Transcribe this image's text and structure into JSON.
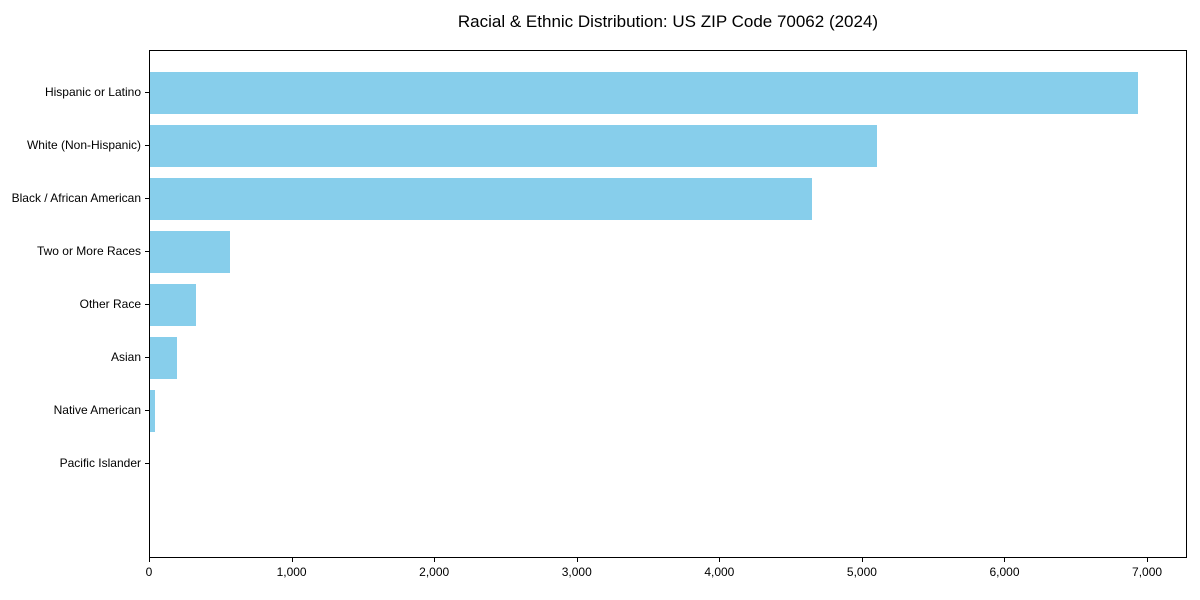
{
  "chart_data": {
    "type": "bar",
    "orientation": "horizontal",
    "title": "Racial & Ethnic Distribution: US ZIP Code 70062 (2024)",
    "categories": [
      "Hispanic or Latino",
      "White (Non-Hispanic)",
      "Black / African American",
      "Two or More Races",
      "Other Race",
      "Asian",
      "Native American",
      "Pacific Islander"
    ],
    "values": [
      6930,
      5100,
      4640,
      560,
      325,
      190,
      35,
      0
    ],
    "title_text": "",
    "xlabel": "",
    "ylabel": "",
    "xlim": [
      0,
      7280
    ],
    "x_ticks": [
      0,
      1000,
      2000,
      3000,
      4000,
      5000,
      6000,
      7000
    ],
    "x_tick_labels": [
      "0",
      "1,000",
      "2,000",
      "3,000",
      "4,000",
      "5,000",
      "6,000",
      "7,000"
    ],
    "bar_color": "#87CEEB",
    "frame_color": "#000000",
    "background_color": "#ffffff",
    "grid": false,
    "legend": false
  }
}
